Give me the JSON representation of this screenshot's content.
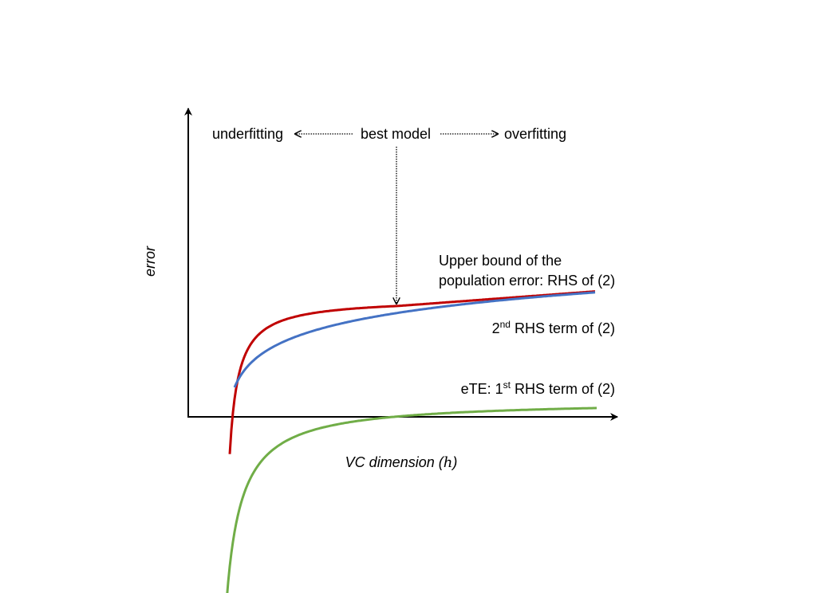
{
  "axes": {
    "x_label": "VC dimension (",
    "x_label_var": "h",
    "x_label_close": ")",
    "y_label": "error"
  },
  "annotations": {
    "left": "underfitting",
    "center": "best model",
    "right": "overfitting"
  },
  "curves": {
    "upper_bound": {
      "line1": "Upper bound of the",
      "line2": "population error: RHS of (2)",
      "color": "#c00000"
    },
    "second_term": {
      "prefix": "2",
      "sup": "nd",
      "suffix": " RHS term of (2)",
      "color": "#4472c4"
    },
    "first_term": {
      "prefix": "eTE: 1",
      "sup": "st",
      "suffix": " RHS term of (2)",
      "color": "#70ad47"
    }
  }
}
